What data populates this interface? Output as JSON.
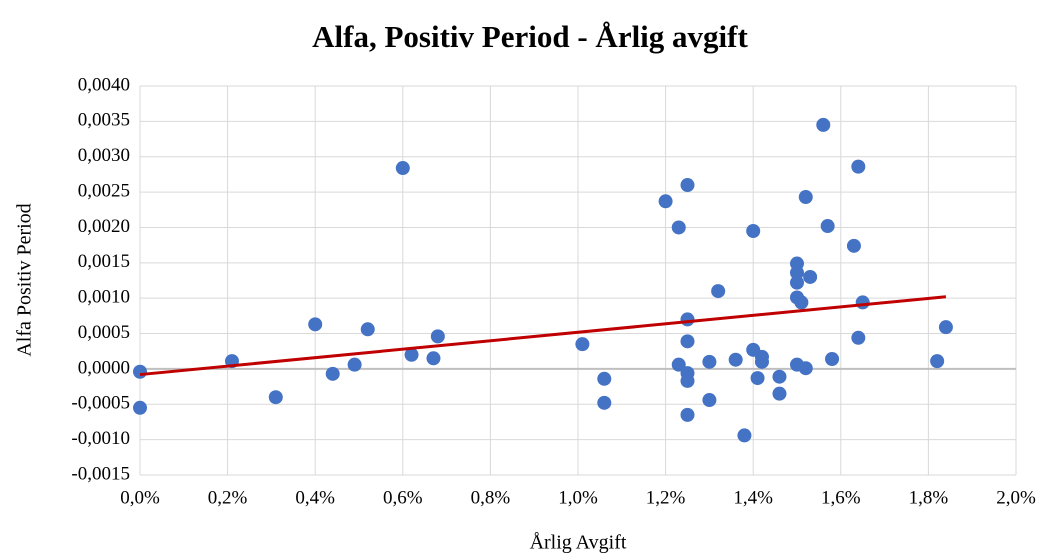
{
  "chart_data": {
    "type": "scatter",
    "title": "Alfa, Positiv Period - Årlig avgift",
    "x_label": "Årlig Avgift",
    "y_label": "Alfa Positiv Period",
    "series": [
      {
        "color": "#4472c4",
        "x": [
          0.0,
          0.0,
          0.21,
          0.31,
          0.4,
          0.44,
          0.49,
          0.52,
          0.6,
          0.62,
          0.67,
          0.68,
          1.01,
          1.06,
          1.06,
          1.2,
          1.23,
          1.23,
          1.25,
          1.25,
          1.25,
          1.25,
          1.25,
          1.25,
          1.3,
          1.3,
          1.32,
          1.36,
          1.38,
          1.4,
          1.4,
          1.41,
          1.42,
          1.42,
          1.46,
          1.46,
          1.5,
          1.5,
          1.5,
          1.5,
          1.5,
          1.51,
          1.52,
          1.52,
          1.53,
          1.56,
          1.57,
          1.58,
          1.63,
          1.64,
          1.64,
          1.65,
          1.82,
          1.84
        ],
        "values": [
          -4e-05,
          -0.00055,
          0.00011,
          -0.0004,
          0.00063,
          -7e-05,
          6e-05,
          0.00056,
          0.00284,
          0.0002,
          0.00015,
          0.00046,
          0.00035,
          -0.00014,
          -0.00048,
          0.00237,
          0.002,
          6e-05,
          0.0026,
          0.0007,
          0.00039,
          -6e-05,
          -0.00017,
          -0.00065,
          0.0001,
          -0.00044,
          0.0011,
          0.00013,
          -0.00094,
          0.00195,
          0.00027,
          -0.00013,
          0.00017,
          0.0001,
          -0.00011,
          -0.00035,
          0.00149,
          0.00136,
          0.00122,
          0.00101,
          6e-05,
          0.00094,
          1e-05,
          0.00243,
          0.0013,
          0.00345,
          0.00202,
          0.00014,
          0.00174,
          0.00286,
          0.00044,
          0.00094,
          0.00011,
          0.00059
        ]
      }
    ],
    "trendline": {
      "color": "#c00000",
      "x": [
        0,
        1.84
      ],
      "values": [
        -8e-05,
        0.00102
      ]
    },
    "xlim": [
      0,
      2
    ],
    "ylim": [
      -0.0015,
      0.004
    ],
    "xticks": [
      {
        "value": 0,
        "label": "0,0%"
      },
      {
        "value": 0.2,
        "label": "0,2%"
      },
      {
        "value": 0.4,
        "label": "0,4%"
      },
      {
        "value": 0.6,
        "label": "0,6%"
      },
      {
        "value": 0.8,
        "label": "0,8%"
      },
      {
        "value": 1.0,
        "label": "1,0%"
      },
      {
        "value": 1.2,
        "label": "1,2%"
      },
      {
        "value": 1.4,
        "label": "1,4%"
      },
      {
        "value": 1.6,
        "label": "1,6%"
      },
      {
        "value": 1.8,
        "label": "1,8%"
      },
      {
        "value": 2.0,
        "label": "2,0%"
      }
    ],
    "yticks": [
      {
        "value": -0.0015,
        "label": "-0,0015"
      },
      {
        "value": -0.001,
        "label": "-0,0010"
      },
      {
        "value": -0.0005,
        "label": "-0,0005"
      },
      {
        "value": 0,
        "label": "0,0000"
      },
      {
        "value": 0.0005,
        "label": "0,0005"
      },
      {
        "value": 0.001,
        "label": "0,0010"
      },
      {
        "value": 0.0015,
        "label": "0,0015"
      },
      {
        "value": 0.002,
        "label": "0,0020"
      },
      {
        "value": 0.0025,
        "label": "0,0025"
      },
      {
        "value": 0.003,
        "label": "0,0030"
      },
      {
        "value": 0.0035,
        "label": "0,0035"
      },
      {
        "value": 0.004,
        "label": "0,0040"
      }
    ],
    "grid": true
  }
}
